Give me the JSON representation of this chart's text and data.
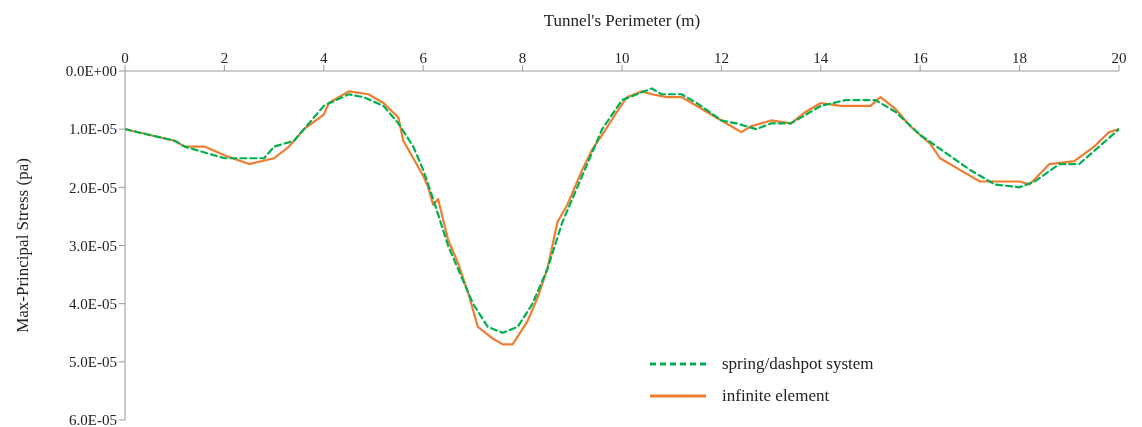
{
  "chart_data": {
    "type": "line",
    "xlabel": "Tunnel's Perimeter (m)",
    "ylabel": "Max-Principal Stress (pa)",
    "xlim": [
      0,
      20
    ],
    "xticks": [
      0,
      2,
      4,
      6,
      8,
      10,
      12,
      14,
      16,
      18,
      20
    ],
    "ylim": [
      6e-05,
      0
    ],
    "yticks": [
      {
        "value": 0,
        "label": "0.0E+00"
      },
      {
        "value": 1e-05,
        "label": "1.0E-05"
      },
      {
        "value": 2e-05,
        "label": "2.0E-05"
      },
      {
        "value": 3e-05,
        "label": "3.0E-05"
      },
      {
        "value": 4e-05,
        "label": "4.0E-05"
      },
      {
        "value": 5e-05,
        "label": "5.0E-05"
      },
      {
        "value": 6e-05,
        "label": "6.0E-05"
      }
    ],
    "grid": false,
    "legend": "bottom right",
    "marker": "none",
    "series": [
      {
        "name": "spring/dashpot system",
        "color": "#00b050",
        "line_style": "dashed",
        "x": [
          0,
          1,
          1.2,
          2,
          2.8,
          3,
          3.4,
          3.8,
          4,
          4.5,
          4.8,
          5.2,
          5.5,
          5.8,
          6,
          6.2,
          6.5,
          6.8,
          7,
          7.3,
          7.6,
          7.9,
          8.2,
          8.5,
          8.8,
          9.2,
          9.6,
          10,
          10.3,
          10.6,
          10.8,
          11.2,
          11.5,
          12,
          12.3,
          12.7,
          13,
          13.4,
          14,
          14.5,
          15.1,
          15.5,
          16,
          16.5,
          17,
          17.5,
          18,
          18.3,
          18.8,
          19.2,
          19.6,
          20
        ],
        "values": [
          1e-05,
          1.2e-05,
          1.3e-05,
          1.5e-05,
          1.5e-05,
          1.3e-05,
          1.2e-05,
          8e-06,
          6e-06,
          4e-06,
          4.5e-06,
          6e-06,
          9e-06,
          1.3e-05,
          1.7e-05,
          2.2e-05,
          3e-05,
          3.6e-05,
          4e-05,
          4.4e-05,
          4.5e-05,
          4.4e-05,
          4e-05,
          3.4e-05,
          2.6e-05,
          1.8e-05,
          1e-05,
          5e-06,
          4e-06,
          3e-06,
          4e-06,
          4e-06,
          5.5e-06,
          8.5e-06,
          9e-06,
          1e-05,
          9e-06,
          9e-06,
          6e-06,
          5e-06,
          5e-06,
          7e-06,
          1.1e-05,
          1.4e-05,
          1.7e-05,
          1.95e-05,
          2e-05,
          1.9e-05,
          1.6e-05,
          1.6e-05,
          1.3e-05,
          1e-05
        ]
      },
      {
        "name": "infinite element",
        "color": "#ed7d31",
        "line_style": "solid",
        "x": [
          0,
          1,
          1.2,
          1.6,
          2,
          2.5,
          3,
          3.3,
          3.6,
          4,
          4.1,
          4.5,
          4.9,
          5.2,
          5.5,
          5.6,
          5.8,
          6,
          6.1,
          6.2,
          6.3,
          6.5,
          6.7,
          6.9,
          7.1,
          7.4,
          7.6,
          7.8,
          8.1,
          8.3,
          8.5,
          8.7,
          8.9,
          9.2,
          9.4,
          9.6,
          9.9,
          10.1,
          10.4,
          10.6,
          10.9,
          11.2,
          11.6,
          12,
          12.4,
          12.6,
          13,
          13.4,
          13.7,
          14,
          14.4,
          15,
          15.2,
          15.5,
          15.8,
          16.2,
          16.4,
          16.8,
          17.2,
          18,
          18.2,
          18.6,
          19.1,
          19.5,
          19.8,
          20
        ],
        "values": [
          1e-05,
          1.2e-05,
          1.3e-05,
          1.3e-05,
          1.45e-05,
          1.6e-05,
          1.5e-05,
          1.3e-05,
          1e-05,
          7.5e-06,
          5.5e-06,
          3.5e-06,
          4e-06,
          5.5e-06,
          8e-06,
          1.2e-05,
          1.5e-05,
          1.8e-05,
          2e-05,
          2.3e-05,
          2.2e-05,
          2.9e-05,
          3.3e-05,
          3.8e-05,
          4.4e-05,
          4.6e-05,
          4.7e-05,
          4.7e-05,
          4.3e-05,
          3.9e-05,
          3.4e-05,
          2.6e-05,
          2.3e-05,
          1.7e-05,
          1.35e-05,
          1.1e-05,
          7e-06,
          4.5e-06,
          3.5e-06,
          4e-06,
          4.5e-06,
          4.5e-06,
          6.5e-06,
          8.5e-06,
          1.05e-05,
          9.5e-06,
          8.5e-06,
          9e-06,
          7e-06,
          5.5e-06,
          6e-06,
          6e-06,
          4.5e-06,
          6.5e-06,
          9.5e-06,
          1.25e-05,
          1.5e-05,
          1.7e-05,
          1.9e-05,
          1.9e-05,
          1.95e-05,
          1.6e-05,
          1.55e-05,
          1.3e-05,
          1.05e-05,
          1e-05
        ]
      }
    ]
  }
}
